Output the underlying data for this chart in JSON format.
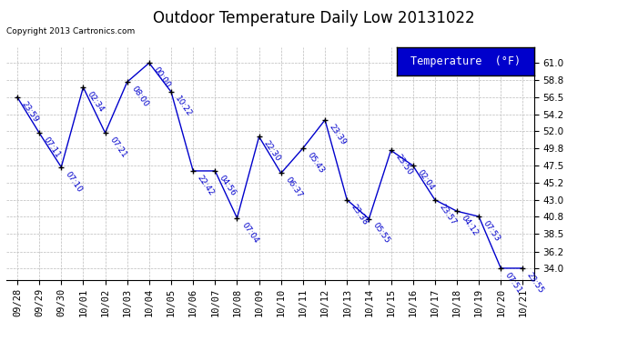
{
  "title": "Outdoor Temperature Daily Low 20131022",
  "copyright": "Copyright 2013 Cartronics.com",
  "legend_label": "Temperature  (°F)",
  "x_labels": [
    "09/28",
    "09/29",
    "09/30",
    "10/01",
    "10/02",
    "10/03",
    "10/04",
    "10/05",
    "10/06",
    "10/07",
    "10/08",
    "10/09",
    "10/10",
    "10/11",
    "10/12",
    "10/13",
    "10/14",
    "10/15",
    "10/16",
    "10/17",
    "10/18",
    "10/19",
    "10/20",
    "10/21"
  ],
  "points": [
    {
      "x": 0,
      "temp": 56.5,
      "label": "23:59"
    },
    {
      "x": 1,
      "temp": 51.8,
      "label": "07:11"
    },
    {
      "x": 2,
      "temp": 47.3,
      "label": "07:10"
    },
    {
      "x": 3,
      "temp": 57.8,
      "label": "02:34"
    },
    {
      "x": 4,
      "temp": 51.8,
      "label": "07:21"
    },
    {
      "x": 5,
      "temp": 58.5,
      "label": "08:00"
    },
    {
      "x": 6,
      "temp": 61.0,
      "label": "00:00"
    },
    {
      "x": 7,
      "temp": 57.2,
      "label": "10:22"
    },
    {
      "x": 8,
      "temp": 46.8,
      "label": "22:42"
    },
    {
      "x": 9,
      "temp": 46.8,
      "label": "04:56"
    },
    {
      "x": 10,
      "temp": 40.6,
      "label": "07:04"
    },
    {
      "x": 11,
      "temp": 51.3,
      "label": "22:30"
    },
    {
      "x": 12,
      "temp": 46.5,
      "label": "06:37"
    },
    {
      "x": 13,
      "temp": 49.8,
      "label": "05:43"
    },
    {
      "x": 14,
      "temp": 53.5,
      "label": "23:39"
    },
    {
      "x": 15,
      "temp": 43.0,
      "label": "23:38"
    },
    {
      "x": 16,
      "temp": 40.5,
      "label": "05:55"
    },
    {
      "x": 17,
      "temp": 49.5,
      "label": "23:50"
    },
    {
      "x": 18,
      "temp": 47.5,
      "label": "02:04"
    },
    {
      "x": 19,
      "temp": 43.0,
      "label": "23:57"
    },
    {
      "x": 20,
      "temp": 41.5,
      "label": "04:12"
    },
    {
      "x": 21,
      "temp": 40.8,
      "label": "07:53"
    },
    {
      "x": 22,
      "temp": 34.0,
      "label": "07:51"
    },
    {
      "x": 23,
      "temp": 34.0,
      "label": "23:55"
    }
  ],
  "ylim": [
    32.5,
    63.0
  ],
  "yticks": [
    34.0,
    36.2,
    38.5,
    40.8,
    43.0,
    45.2,
    47.5,
    49.8,
    52.0,
    54.2,
    56.5,
    58.8,
    61.0
  ],
  "line_color": "#0000cc",
  "marker_color": "#000000",
  "bg_color": "#ffffff",
  "grid_color": "#bbbbbb",
  "title_fontsize": 12,
  "point_label_fontsize": 6.5,
  "tick_fontsize": 7.5,
  "copyright_fontsize": 6.5,
  "legend_fontsize": 8.5
}
